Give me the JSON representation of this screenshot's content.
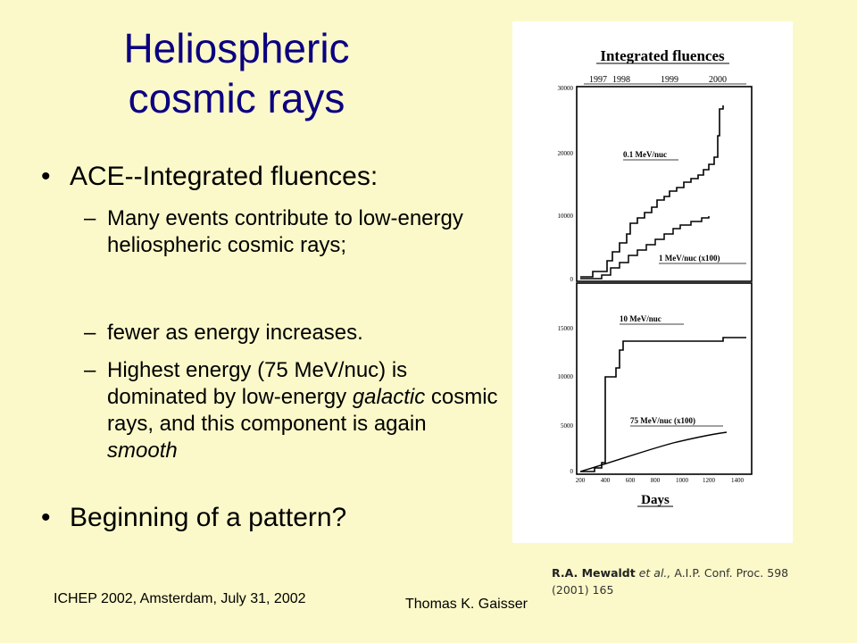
{
  "slide": {
    "title_line1": "Heliospheric",
    "title_line2": "cosmic rays",
    "bullets": [
      {
        "text": "ACE--Integrated fluences:",
        "subs": [
          "Many events contribute to low-energy heliospheric cosmic rays;",
          "fewer as energy increases."
        ]
      }
    ],
    "sub3": {
      "part1": "Highest energy (75 MeV/nuc) is dominated by low-energy ",
      "em1": "galactic",
      "part2": " cosmic rays, and this component is again ",
      "em2": "smooth"
    },
    "bullet2": "Beginning of a pattern?",
    "bullet_char": "•",
    "dash_char": "–"
  },
  "figure": {
    "title": "Integrated fluences",
    "years": [
      "1997",
      "1998",
      "1999",
      "2000"
    ],
    "top_panel": {
      "yticks": [
        "30000",
        "20000",
        "10000",
        "0"
      ],
      "labels": [
        "0.1 MeV/nuc",
        "1 MeV/nuc (x100)"
      ]
    },
    "bottom_panel": {
      "yticks": [
        "15000",
        "10000",
        "5000",
        "0"
      ],
      "labels": [
        "10 MeV/nuc",
        "75 MeV/nuc (x100)"
      ]
    },
    "xticks": [
      "200",
      "400",
      "600",
      "800",
      "1000",
      "1200",
      "1400"
    ],
    "xlabel": "Days"
  },
  "citation": {
    "author": "R.A. Mewaldt",
    "etal": "et al.,",
    "rest": "A.I.P. Conf. Proc. 598 (2001) 165"
  },
  "footer": {
    "left": "ICHEP 2002, Amsterdam, July 31, 2002",
    "right": "Thomas K. Gaisser"
  },
  "colors": {
    "background": "#fbf9c9",
    "title": "#0b0080"
  }
}
